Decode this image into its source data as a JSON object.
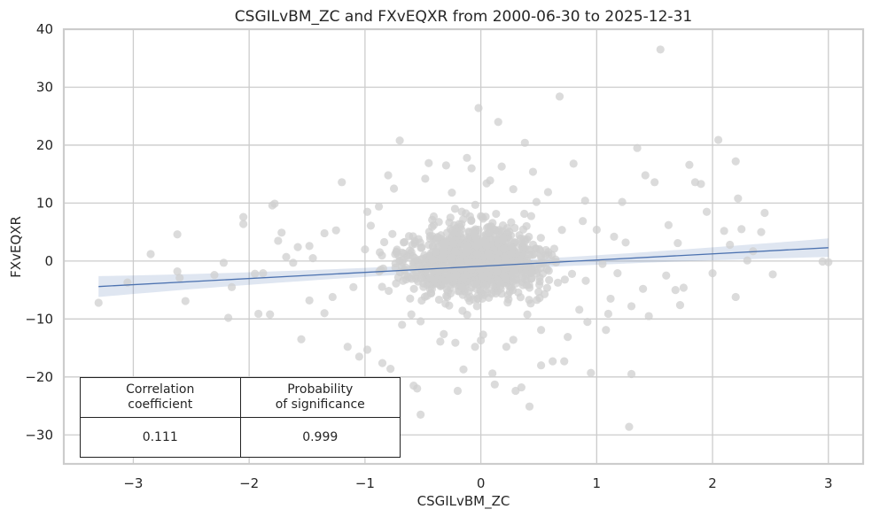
{
  "chart_data": {
    "type": "scatter",
    "title": "CSGILvBM_ZC and FXvEQXR from 2000-06-30 to 2025-12-31",
    "xlabel": "CSGILvBM_ZC",
    "ylabel": "FXvEQXR",
    "xlim": [
      -3.6,
      3.3
    ],
    "ylim": [
      -35,
      40
    ],
    "xticks": [
      -3,
      -2,
      -1,
      0,
      1,
      2,
      3
    ],
    "xtick_labels": [
      "−3",
      "−2",
      "−1",
      "0",
      "1",
      "2",
      "3"
    ],
    "yticks": [
      -30,
      -20,
      -10,
      0,
      10,
      20,
      30,
      40
    ],
    "ytick_labels": [
      "−30",
      "−20",
      "−10",
      "0",
      "10",
      "20",
      "30",
      "40"
    ],
    "grid": true,
    "regression": {
      "x_range": [
        -3.3,
        3.0
      ],
      "y_range": [
        -4.4,
        2.3
      ],
      "ci_halfwidth_ends": [
        1.8,
        1.6
      ]
    },
    "points": [
      [
        -3.3,
        -7.2
      ],
      [
        -3.05,
        -3.7
      ],
      [
        -2.85,
        1.2
      ],
      [
        -2.62,
        4.6
      ],
      [
        -2.55,
        -6.9
      ],
      [
        -2.62,
        -1.8
      ],
      [
        -2.6,
        -2.9
      ],
      [
        -2.22,
        -0.3
      ],
      [
        -2.18,
        -9.8
      ],
      [
        -2.15,
        -4.5
      ],
      [
        -2.05,
        7.6
      ],
      [
        -2.05,
        6.4
      ],
      [
        -1.95,
        -2.2
      ],
      [
        -1.92,
        -9.1
      ],
      [
        -1.88,
        -2.1
      ],
      [
        -1.82,
        -9.2
      ],
      [
        -1.8,
        9.6
      ],
      [
        -1.78,
        9.9
      ],
      [
        -1.75,
        3.5
      ],
      [
        -1.72,
        4.9
      ],
      [
        -1.62,
        -0.3
      ],
      [
        -1.55,
        -13.5
      ],
      [
        -1.48,
        2.6
      ],
      [
        -1.45,
        0.5
      ],
      [
        -1.35,
        4.8
      ],
      [
        -1.25,
        5.3
      ],
      [
        -1.2,
        13.6
      ],
      [
        -1.15,
        -14.8
      ],
      [
        -1.1,
        -4.5
      ],
      [
        -1.05,
        -16.5
      ],
      [
        -1.0,
        2.0
      ],
      [
        -0.98,
        8.5
      ],
      [
        -0.95,
        6.1
      ],
      [
        -0.88,
        9.4
      ],
      [
        -0.85,
        -17.6
      ],
      [
        -0.8,
        14.8
      ],
      [
        -0.78,
        -18.6
      ],
      [
        -0.75,
        12.5
      ],
      [
        -0.7,
        20.8
      ],
      [
        -0.62,
        4.3
      ],
      [
        -0.6,
        -9.2
      ],
      [
        -0.58,
        -21.5
      ],
      [
        -0.55,
        -22.0
      ],
      [
        -0.52,
        -26.5
      ],
      [
        -0.48,
        14.2
      ],
      [
        -0.45,
        16.9
      ],
      [
        -0.42,
        7.1
      ],
      [
        -0.35,
        -13.9
      ],
      [
        -0.3,
        16.5
      ],
      [
        -0.25,
        11.8
      ],
      [
        -0.2,
        -22.4
      ],
      [
        -0.15,
        -18.7
      ],
      [
        -0.12,
        17.8
      ],
      [
        -0.08,
        16.0
      ],
      [
        -0.05,
        -14.8
      ],
      [
        -0.02,
        26.4
      ],
      [
        0.0,
        -13.7
      ],
      [
        0.05,
        13.4
      ],
      [
        0.08,
        13.9
      ],
      [
        0.1,
        -19.4
      ],
      [
        0.12,
        -21.3
      ],
      [
        0.15,
        24.0
      ],
      [
        0.18,
        16.3
      ],
      [
        0.22,
        -14.8
      ],
      [
        0.28,
        12.4
      ],
      [
        0.3,
        -22.4
      ],
      [
        0.35,
        -21.8
      ],
      [
        0.38,
        20.4
      ],
      [
        0.42,
        -25.1
      ],
      [
        0.45,
        15.4
      ],
      [
        0.48,
        10.2
      ],
      [
        0.52,
        -18.0
      ],
      [
        0.58,
        11.9
      ],
      [
        0.62,
        -17.3
      ],
      [
        0.68,
        28.4
      ],
      [
        0.72,
        -17.3
      ],
      [
        0.8,
        16.8
      ],
      [
        0.85,
        -8.4
      ],
      [
        0.9,
        10.4
      ],
      [
        0.95,
        -19.3
      ],
      [
        1.0,
        5.4
      ],
      [
        1.05,
        -0.5
      ],
      [
        1.1,
        -9.1
      ],
      [
        1.18,
        -2.1
      ],
      [
        1.22,
        10.2
      ],
      [
        1.28,
        -28.6
      ],
      [
        1.3,
        -19.5
      ],
      [
        1.35,
        19.5
      ],
      [
        1.42,
        14.8
      ],
      [
        1.5,
        13.6
      ],
      [
        1.55,
        36.5
      ],
      [
        1.6,
        -2.5
      ],
      [
        1.7,
        3.1
      ],
      [
        1.75,
        -4.6
      ],
      [
        1.8,
        16.6
      ],
      [
        1.85,
        13.6
      ],
      [
        1.9,
        13.3
      ],
      [
        1.95,
        8.5
      ],
      [
        2.0,
        -2.1
      ],
      [
        2.05,
        20.9
      ],
      [
        2.1,
        5.2
      ],
      [
        2.15,
        2.8
      ],
      [
        2.2,
        17.2
      ],
      [
        2.22,
        10.8
      ],
      [
        2.25,
        5.5
      ],
      [
        2.3,
        0.1
      ],
      [
        2.35,
        1.7
      ],
      [
        2.42,
        5.0
      ],
      [
        2.45,
        8.3
      ],
      [
        2.52,
        -2.3
      ],
      [
        2.95,
        -0.1
      ],
      [
        3.0,
        -0.2
      ],
      [
        2.2,
        -6.2
      ],
      [
        1.72,
        -7.6
      ],
      [
        1.68,
        -5.0
      ],
      [
        1.62,
        6.2
      ],
      [
        1.45,
        -9.5
      ],
      [
        1.4,
        -4.8
      ],
      [
        1.3,
        -7.8
      ],
      [
        1.25,
        3.2
      ],
      [
        1.15,
        4.2
      ],
      [
        1.12,
        -6.5
      ],
      [
        1.08,
        -11.9
      ],
      [
        0.92,
        -10.5
      ],
      [
        0.88,
        6.9
      ],
      [
        0.75,
        -13.1
      ],
      [
        -1.35,
        -9.0
      ],
      [
        -1.58,
        2.4
      ],
      [
        -1.68,
        0.7
      ],
      [
        -2.3,
        -2.4
      ],
      [
        -1.48,
        -6.8
      ],
      [
        -1.28,
        -6.2
      ],
      [
        -0.98,
        -15.3
      ],
      [
        -0.68,
        -11.0
      ],
      [
        -0.52,
        -10.4
      ],
      [
        -0.32,
        -12.6
      ],
      [
        -0.22,
        -14.1
      ],
      [
        0.02,
        -12.7
      ],
      [
        0.28,
        -13.6
      ],
      [
        0.52,
        -11.9
      ]
    ],
    "stats_table": {
      "headers": [
        "Correlation\ncoefficient",
        "Probability\nof significance"
      ],
      "values": [
        "0.111",
        "0.999"
      ]
    }
  }
}
